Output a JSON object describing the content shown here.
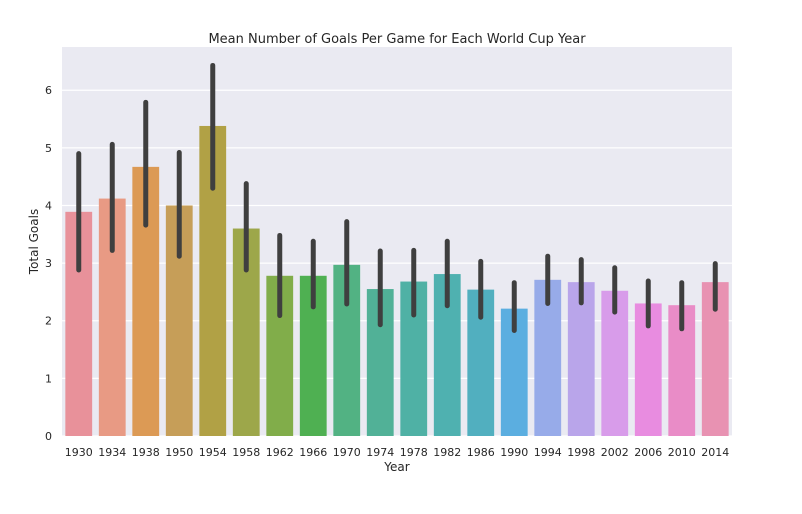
{
  "chart_data": {
    "type": "bar",
    "title": "Mean Number of Goals Per Game for Each World Cup Year",
    "xlabel": "Year",
    "ylabel": "Total Goals",
    "ylim": [
      0,
      6.75
    ],
    "yticks": [
      0,
      1,
      2,
      3,
      4,
      5,
      6
    ],
    "grid": true,
    "categories": [
      "1930",
      "1934",
      "1938",
      "1950",
      "1954",
      "1958",
      "1962",
      "1966",
      "1970",
      "1974",
      "1978",
      "1982",
      "1986",
      "1990",
      "1994",
      "1998",
      "2002",
      "2006",
      "2010",
      "2014"
    ],
    "values": [
      3.89,
      4.12,
      4.67,
      4.0,
      5.38,
      3.6,
      2.78,
      2.78,
      2.97,
      2.55,
      2.68,
      2.81,
      2.54,
      2.21,
      2.71,
      2.67,
      2.52,
      2.3,
      2.27,
      2.67
    ],
    "error_low": [
      2.88,
      3.22,
      3.66,
      3.12,
      4.3,
      2.88,
      2.09,
      2.24,
      2.29,
      1.93,
      2.1,
      2.26,
      2.06,
      1.83,
      2.3,
      2.31,
      2.15,
      1.91,
      1.86,
      2.2
    ],
    "error_high": [
      4.9,
      5.06,
      5.79,
      4.92,
      6.43,
      4.38,
      3.48,
      3.38,
      3.72,
      3.21,
      3.22,
      3.38,
      3.03,
      2.66,
      3.12,
      3.06,
      2.92,
      2.69,
      2.66,
      2.99
    ],
    "colors": [
      "#e8919a",
      "#e89a84",
      "#dc9a55",
      "#c69e58",
      "#b1a145",
      "#9da74a",
      "#81ad4a",
      "#4fb052",
      "#52b283",
      "#51b197",
      "#4fb1a5",
      "#4fb1b0",
      "#51afbf",
      "#5baee0",
      "#97abe9",
      "#b9a5ea",
      "#d89cea",
      "#e88ce0",
      "#e98cc7",
      "#e892b2"
    ]
  }
}
